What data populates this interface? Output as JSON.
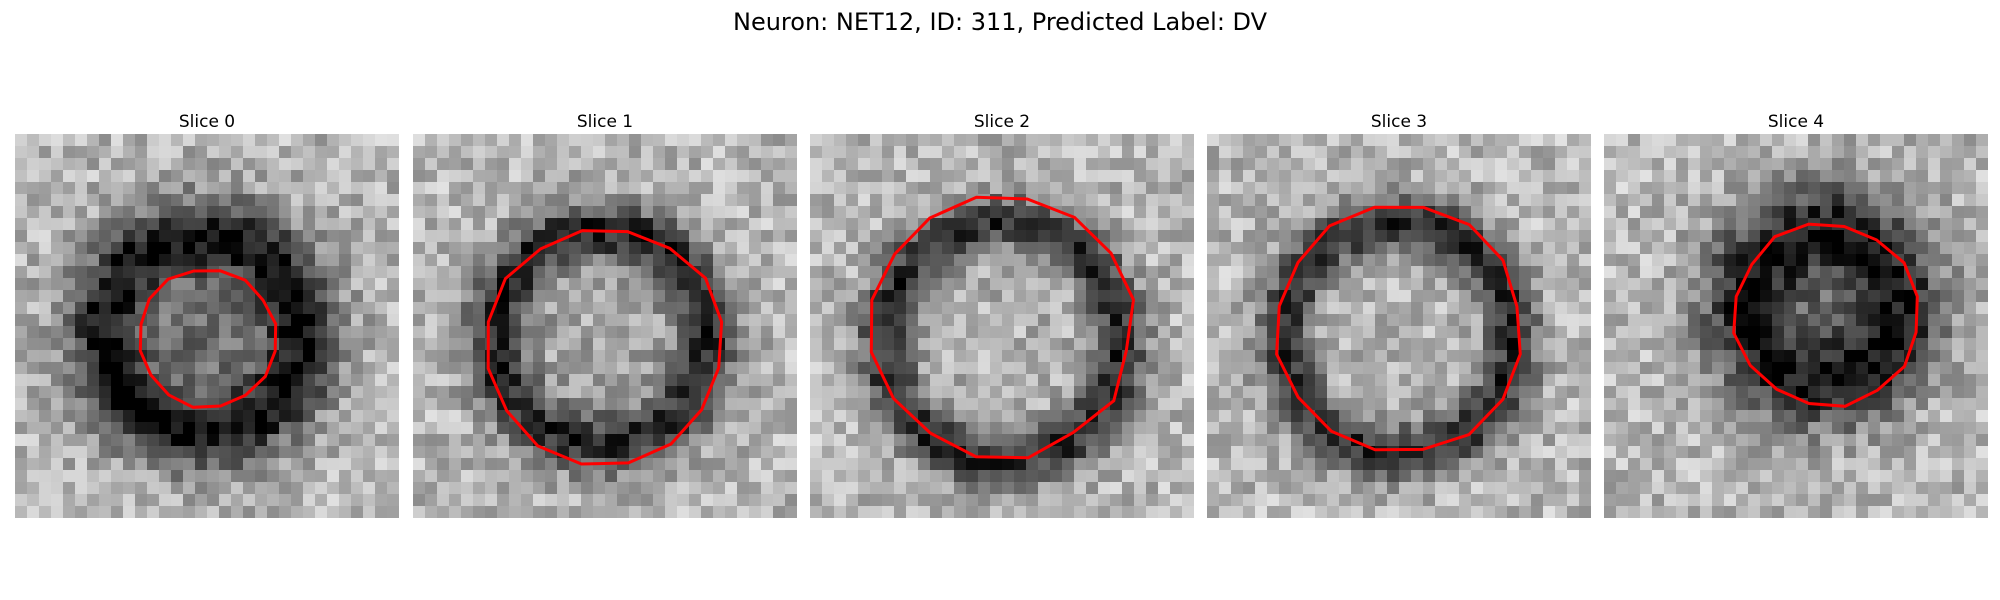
{
  "title": "Neuron: NET12, ID: 311, Predicted Label: DV",
  "contour_color": "#ff0000",
  "colormap": "gray",
  "panels": [
    {
      "label": "Slice 0",
      "center": [
        0.49,
        0.52
      ],
      "ring_radius": 0.26,
      "ring_width": 0.12,
      "core_dark": 0.55,
      "contour_center": [
        0.5,
        0.53
      ],
      "contour_radius": 0.18
    },
    {
      "label": "Slice 1",
      "center": [
        0.49,
        0.53
      ],
      "ring_radius": 0.28,
      "ring_width": 0.1,
      "core_dark": 0.15,
      "contour_center": [
        0.5,
        0.55
      ],
      "contour_radius": 0.31
    },
    {
      "label": "Slice 2",
      "center": [
        0.5,
        0.54
      ],
      "ring_radius": 0.31,
      "ring_width": 0.09,
      "core_dark": 0.05,
      "contour_center": [
        0.5,
        0.5
      ],
      "contour_radius": 0.34
    },
    {
      "label": "Slice 3",
      "center": [
        0.5,
        0.53
      ],
      "ring_radius": 0.3,
      "ring_width": 0.09,
      "core_dark": 0.05,
      "contour_center": [
        0.5,
        0.51
      ],
      "contour_radius": 0.32
    },
    {
      "label": "Slice 4",
      "center": [
        0.57,
        0.45
      ],
      "ring_radius": 0.2,
      "ring_width": 0.16,
      "core_dark": 0.45,
      "contour_center": [
        0.58,
        0.47
      ],
      "contour_radius": 0.24
    }
  ]
}
